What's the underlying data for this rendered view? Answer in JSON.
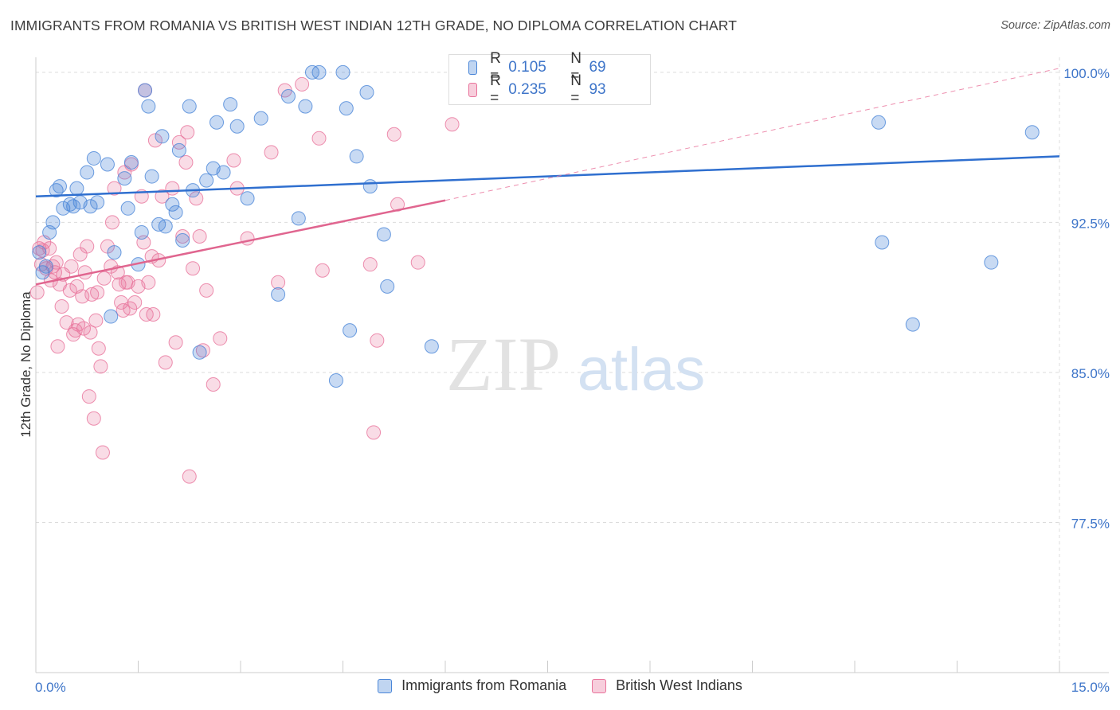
{
  "title": "IMMIGRANTS FROM ROMANIA VS BRITISH WEST INDIAN 12TH GRADE, NO DIPLOMA CORRELATION CHART",
  "source": "Source: ZipAtlas.com",
  "watermark": {
    "zip": "ZIP",
    "atlas": "atlas"
  },
  "legend_top": [
    {
      "r_label": "R =",
      "r_value": "0.105",
      "n_label": "N =",
      "n_value": "69"
    },
    {
      "r_label": "R =",
      "r_value": "0.235",
      "n_label": "N =",
      "n_value": "93"
    }
  ],
  "chart_data": {
    "type": "scatter",
    "title": "IMMIGRANTS FROM ROMANIA VS BRITISH WEST INDIAN 12TH GRADE, NO DIPLOMA CORRELATION CHART",
    "xlabel": "",
    "ylabel": "12th Grade, No Diploma",
    "xlim": [
      0,
      15
    ],
    "ylim": [
      70,
      100.75
    ],
    "x_tick_labels": [
      {
        "value": 0,
        "label": "0.0%"
      },
      {
        "value": 15,
        "label": "15.0%"
      }
    ],
    "y_tick_labels": [
      {
        "value": 100,
        "label": "100.0%"
      },
      {
        "value": 92.5,
        "label": "92.5%"
      },
      {
        "value": 85,
        "label": "85.0%"
      },
      {
        "value": 77.5,
        "label": "77.5%"
      }
    ],
    "grid": true,
    "legend_position": "bottom",
    "colors": {
      "romania": "#4a86d8",
      "bwi": "#e9739b"
    },
    "series": [
      {
        "name": "Immigrants from Romania",
        "r": 0.105,
        "n": 69,
        "trend": {
          "x": [
            0,
            15
          ],
          "y": [
            93.8,
            95.8
          ],
          "dashed_extension": false
        },
        "points": [
          [
            0.05,
            91.0
          ],
          [
            0.1,
            90.0
          ],
          [
            0.15,
            90.3
          ],
          [
            0.2,
            92.0
          ],
          [
            0.25,
            92.5
          ],
          [
            0.3,
            94.1
          ],
          [
            0.35,
            94.3
          ],
          [
            0.4,
            93.2
          ],
          [
            0.5,
            93.4
          ],
          [
            0.55,
            93.3
          ],
          [
            0.6,
            94.2
          ],
          [
            0.65,
            93.5
          ],
          [
            0.75,
            95.0
          ],
          [
            0.8,
            93.3
          ],
          [
            0.85,
            95.7
          ],
          [
            0.9,
            93.5
          ],
          [
            1.05,
            95.4
          ],
          [
            1.1,
            87.8
          ],
          [
            1.15,
            91.0
          ],
          [
            1.3,
            94.7
          ],
          [
            1.35,
            93.2
          ],
          [
            1.4,
            95.5
          ],
          [
            1.5,
            90.4
          ],
          [
            1.55,
            92.0
          ],
          [
            1.6,
            99.1
          ],
          [
            1.65,
            98.3
          ],
          [
            1.7,
            94.8
          ],
          [
            1.8,
            92.4
          ],
          [
            1.85,
            96.8
          ],
          [
            1.9,
            92.3
          ],
          [
            2.0,
            93.4
          ],
          [
            2.05,
            93.0
          ],
          [
            2.1,
            96.1
          ],
          [
            2.15,
            91.6
          ],
          [
            2.25,
            98.3
          ],
          [
            2.3,
            94.1
          ],
          [
            2.4,
            86.0
          ],
          [
            2.5,
            94.6
          ],
          [
            2.6,
            95.2
          ],
          [
            2.65,
            97.5
          ],
          [
            2.75,
            95.0
          ],
          [
            2.85,
            98.4
          ],
          [
            2.95,
            97.3
          ],
          [
            3.1,
            93.7
          ],
          [
            3.3,
            97.7
          ],
          [
            3.55,
            88.9
          ],
          [
            3.7,
            98.8
          ],
          [
            3.85,
            92.7
          ],
          [
            3.95,
            98.3
          ],
          [
            4.05,
            100.0
          ],
          [
            4.15,
            100.0
          ],
          [
            4.4,
            84.6
          ],
          [
            4.5,
            100.0
          ],
          [
            4.55,
            98.2
          ],
          [
            4.6,
            87.1
          ],
          [
            4.7,
            95.8
          ],
          [
            4.85,
            99.0
          ],
          [
            4.9,
            94.3
          ],
          [
            5.1,
            91.9
          ],
          [
            5.15,
            89.3
          ],
          [
            5.8,
            86.3
          ],
          [
            6.35,
            100.0
          ],
          [
            6.65,
            98.8
          ],
          [
            7.65,
            100.0
          ],
          [
            12.35,
            97.5
          ],
          [
            12.4,
            91.5
          ],
          [
            12.85,
            87.4
          ],
          [
            14.6,
            97.0
          ],
          [
            14.0,
            90.5
          ]
        ]
      },
      {
        "name": "British West Indians",
        "r": 0.235,
        "n": 93,
        "trend": {
          "x": [
            0,
            6.0
          ],
          "y": [
            89.4,
            93.6
          ],
          "dashed_extension": true,
          "extension_to": [
            15,
            100.2
          ]
        },
        "points": [
          [
            0.02,
            89.0
          ],
          [
            0.05,
            91.2
          ],
          [
            0.08,
            90.4
          ],
          [
            0.1,
            91.1
          ],
          [
            0.12,
            91.5
          ],
          [
            0.15,
            90.2
          ],
          [
            0.2,
            91.2
          ],
          [
            0.22,
            89.6
          ],
          [
            0.25,
            90.3
          ],
          [
            0.28,
            90.0
          ],
          [
            0.3,
            90.5
          ],
          [
            0.32,
            86.3
          ],
          [
            0.35,
            89.4
          ],
          [
            0.38,
            88.3
          ],
          [
            0.4,
            89.9
          ],
          [
            0.45,
            87.5
          ],
          [
            0.5,
            89.1
          ],
          [
            0.52,
            90.3
          ],
          [
            0.55,
            86.9
          ],
          [
            0.58,
            87.1
          ],
          [
            0.6,
            89.3
          ],
          [
            0.62,
            87.4
          ],
          [
            0.65,
            90.9
          ],
          [
            0.68,
            88.8
          ],
          [
            0.7,
            87.2
          ],
          [
            0.72,
            90.0
          ],
          [
            0.75,
            91.3
          ],
          [
            0.78,
            83.8
          ],
          [
            0.8,
            87.0
          ],
          [
            0.82,
            88.9
          ],
          [
            0.85,
            82.7
          ],
          [
            0.88,
            87.6
          ],
          [
            0.9,
            89.0
          ],
          [
            0.92,
            86.2
          ],
          [
            0.95,
            85.3
          ],
          [
            0.98,
            81.0
          ],
          [
            1.0,
            89.7
          ],
          [
            1.05,
            91.3
          ],
          [
            1.1,
            90.3
          ],
          [
            1.12,
            92.5
          ],
          [
            1.15,
            94.2
          ],
          [
            1.2,
            90.0
          ],
          [
            1.22,
            89.4
          ],
          [
            1.25,
            88.5
          ],
          [
            1.28,
            88.1
          ],
          [
            1.3,
            95.0
          ],
          [
            1.32,
            89.5
          ],
          [
            1.35,
            89.5
          ],
          [
            1.38,
            88.2
          ],
          [
            1.4,
            95.4
          ],
          [
            1.45,
            88.5
          ],
          [
            1.5,
            89.3
          ],
          [
            1.55,
            93.8
          ],
          [
            1.58,
            91.5
          ],
          [
            1.6,
            99.1
          ],
          [
            1.62,
            87.9
          ],
          [
            1.65,
            89.5
          ],
          [
            1.7,
            90.8
          ],
          [
            1.72,
            87.9
          ],
          [
            1.75,
            96.6
          ],
          [
            1.8,
            90.6
          ],
          [
            1.85,
            93.8
          ],
          [
            1.9,
            85.5
          ],
          [
            2.0,
            94.2
          ],
          [
            2.05,
            86.5
          ],
          [
            2.1,
            96.5
          ],
          [
            2.15,
            91.8
          ],
          [
            2.2,
            95.5
          ],
          [
            2.22,
            97.0
          ],
          [
            2.25,
            79.8
          ],
          [
            2.3,
            90.2
          ],
          [
            2.35,
            93.7
          ],
          [
            2.4,
            91.8
          ],
          [
            2.45,
            86.1
          ],
          [
            2.5,
            89.1
          ],
          [
            2.6,
            84.4
          ],
          [
            2.7,
            86.7
          ],
          [
            2.9,
            95.6
          ],
          [
            2.95,
            94.2
          ],
          [
            3.1,
            91.7
          ],
          [
            3.45,
            96.0
          ],
          [
            3.55,
            89.5
          ],
          [
            3.65,
            99.1
          ],
          [
            3.9,
            99.4
          ],
          [
            4.15,
            96.7
          ],
          [
            4.2,
            90.1
          ],
          [
            4.9,
            90.4
          ],
          [
            4.95,
            82.0
          ],
          [
            5.0,
            86.6
          ],
          [
            5.25,
            96.9
          ],
          [
            5.3,
            93.4
          ],
          [
            5.6,
            90.5
          ],
          [
            6.1,
            97.4
          ]
        ]
      }
    ]
  },
  "legend_bottom": [
    {
      "label": "Immigrants from Romania"
    },
    {
      "label": "British West Indians"
    }
  ]
}
